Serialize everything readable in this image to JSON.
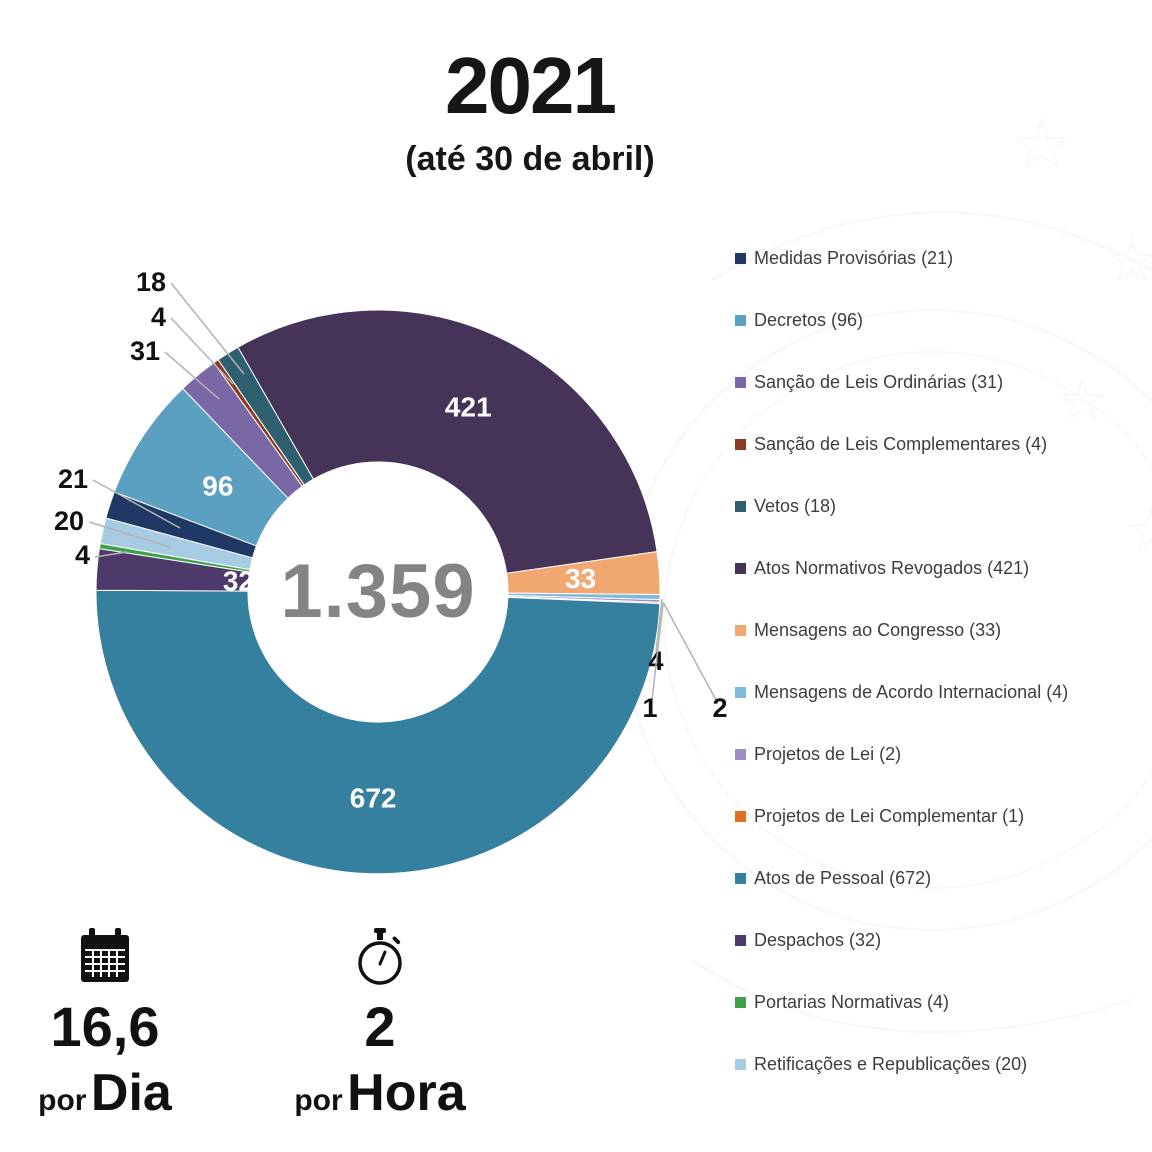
{
  "header": {
    "title": "2021",
    "subtitle": "(até 30 de abril)"
  },
  "chart_data": {
    "type": "pie",
    "variant": "donut",
    "title": "2021 (até 30 de abril)",
    "center_total_label": "1.359",
    "total": 1359,
    "start_angle_deg": -74.8,
    "direction": "clockwise",
    "legend_position": "right",
    "legend_label_format": "{label} ({value})",
    "slices": [
      {
        "label": "Medidas Provisórias",
        "value": 21,
        "color": "#1f3864"
      },
      {
        "label": "Decretos",
        "value": 96,
        "color": "#5b9fc1"
      },
      {
        "label": "Sanção de Leis Ordinárias",
        "value": 31,
        "color": "#7a68a6"
      },
      {
        "label": "Sanção de Leis Complementares",
        "value": 4,
        "color": "#8c3a21"
      },
      {
        "label": "Vetos",
        "value": 18,
        "color": "#2e5f6e"
      },
      {
        "label": "Atos Normativos Revogados",
        "value": 421,
        "color": "#463458"
      },
      {
        "label": "Mensagens ao Congresso",
        "value": 33,
        "color": "#f0a870"
      },
      {
        "label": "Mensagens de Acordo Internacional",
        "value": 4,
        "color": "#7fbadc"
      },
      {
        "label": "Projetos de Lei",
        "value": 2,
        "color": "#9f8dc1"
      },
      {
        "label": "Projetos de Lei Complementar",
        "value": 1,
        "color": "#e36f1e"
      },
      {
        "label": "Atos de Pessoal",
        "value": 672,
        "color": "#35809e"
      },
      {
        "label": "Despachos",
        "value": 32,
        "color": "#4d3a6b"
      },
      {
        "label": "Portarias Normativas",
        "value": 4,
        "color": "#3fa24a"
      },
      {
        "label": "Retificações e Republicações",
        "value": 20,
        "color": "#a6cbe3"
      }
    ]
  },
  "stats": {
    "per_day": {
      "value": "16,6",
      "prefix": "por",
      "unit": "Dia"
    },
    "per_hour": {
      "value": "2",
      "prefix": "por",
      "unit": "Hora"
    }
  }
}
